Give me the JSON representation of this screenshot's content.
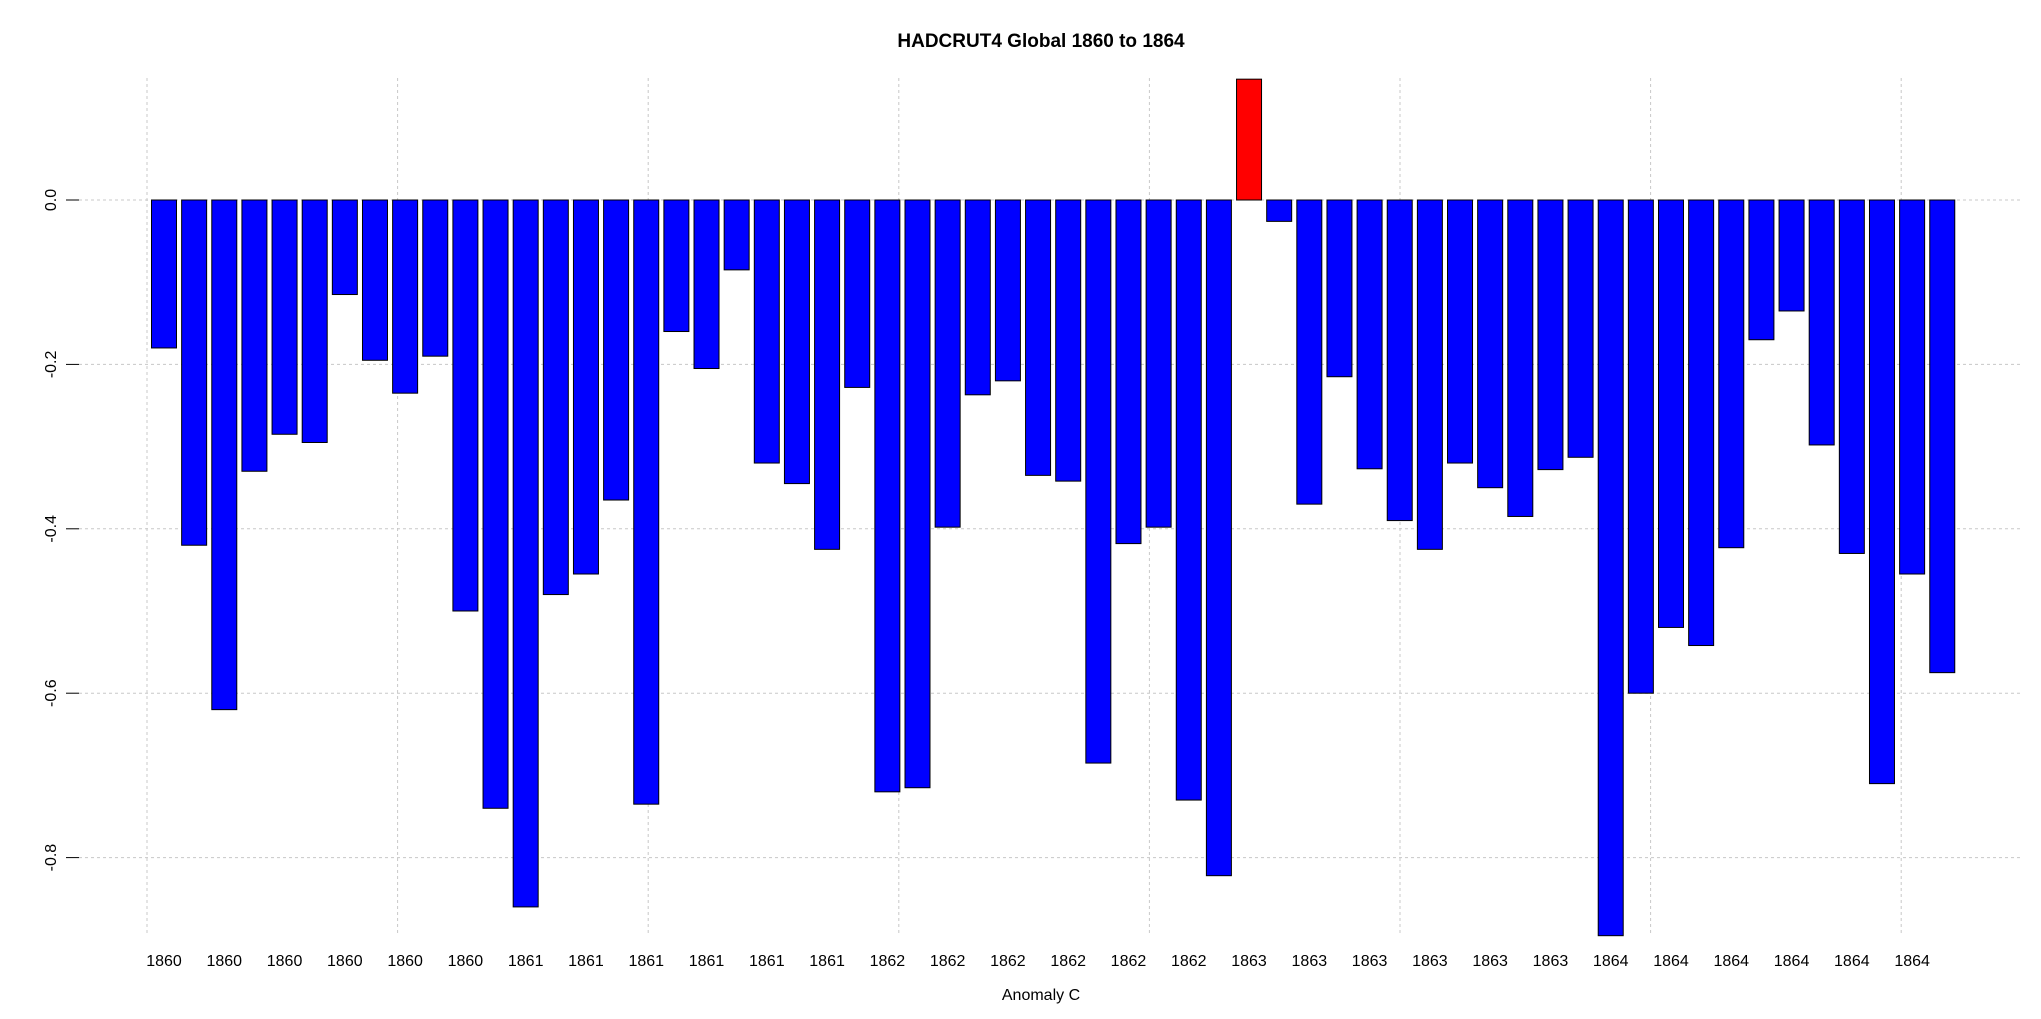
{
  "chart_data": {
    "type": "bar",
    "title": "HADCRUT4 Global 1860 to 1864",
    "xlabel": "Anomaly C",
    "ylabel": "",
    "ylim": [
      -0.9,
      0.15
    ],
    "y_ticks": [
      0.0,
      -0.2,
      -0.4,
      -0.6,
      -0.8
    ],
    "y_tick_labels": [
      "0.0",
      "-0.2",
      "-0.4",
      "-0.6",
      "-0.8"
    ],
    "x_tick_labels": [
      "1860",
      "1860",
      "1860",
      "1860",
      "1860",
      "1860",
      "1861",
      "1861",
      "1861",
      "1861",
      "1861",
      "1861",
      "1862",
      "1862",
      "1862",
      "1862",
      "1862",
      "1862",
      "1863",
      "1863",
      "1863",
      "1863",
      "1863",
      "1863",
      "1864",
      "1864",
      "1864",
      "1864",
      "1864",
      "1864"
    ],
    "grid": true,
    "colors": {
      "normal": "#0000ff",
      "highlight": "#ff0000"
    },
    "highlight_index": 36,
    "values": [
      -0.18,
      -0.42,
      -0.62,
      -0.33,
      -0.285,
      -0.295,
      -0.115,
      -0.195,
      -0.235,
      -0.19,
      -0.5,
      -0.74,
      -0.86,
      -0.48,
      -0.455,
      -0.365,
      -0.735,
      -0.16,
      -0.205,
      -0.085,
      -0.32,
      -0.345,
      -0.425,
      -0.228,
      -0.72,
      -0.715,
      -0.398,
      -0.237,
      -0.22,
      -0.335,
      -0.342,
      -0.685,
      -0.418,
      -0.398,
      -0.73,
      -0.822,
      0.147,
      -0.026,
      -0.37,
      -0.215,
      -0.327,
      -0.39,
      -0.425,
      -0.32,
      -0.35,
      -0.385,
      -0.328,
      -0.313,
      -0.895,
      -0.6,
      -0.52,
      -0.542,
      -0.423,
      -0.17,
      -0.135,
      -0.298,
      -0.43,
      -0.71,
      -0.455,
      -0.575
    ]
  }
}
